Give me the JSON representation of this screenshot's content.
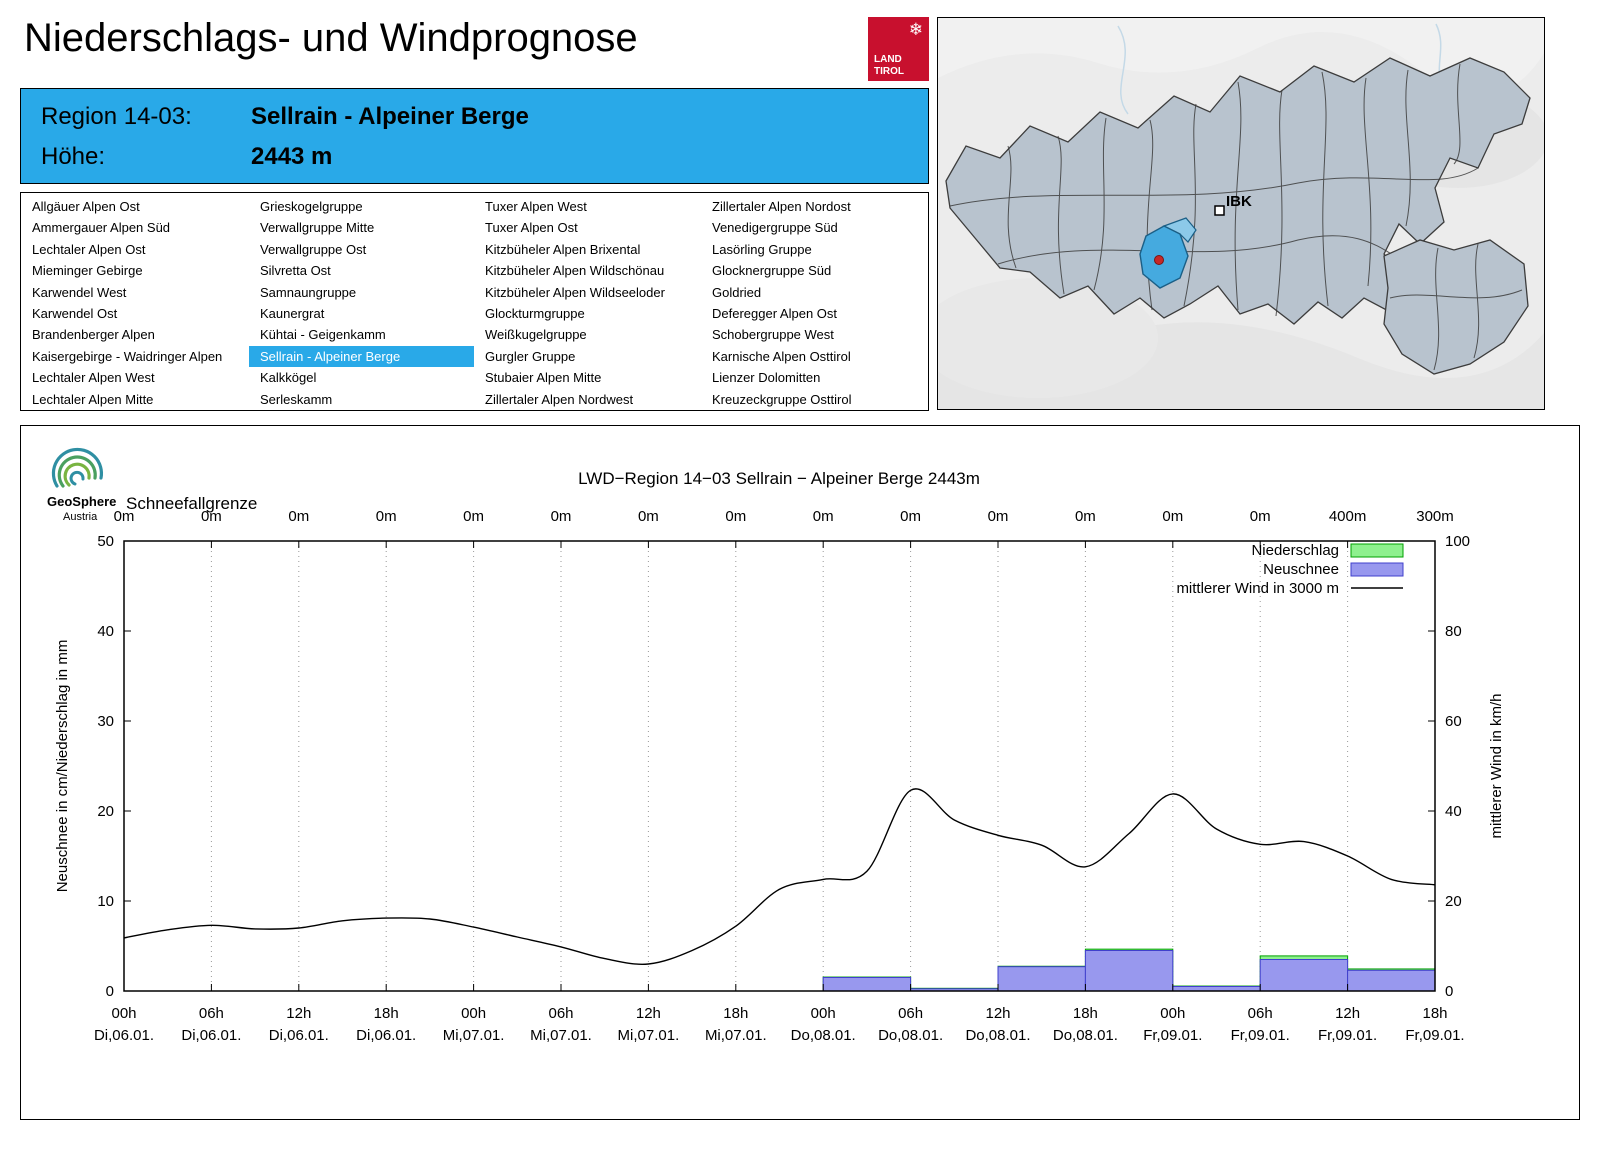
{
  "header": {
    "title": "Niederschlags- und Windprognose",
    "logo": {
      "line1": "LAND",
      "line2": "TIROL",
      "color": "#c8102e"
    }
  },
  "region_info": {
    "region_label": "Region 14-03:",
    "region_value": "Sellrain - Alpeiner Berge",
    "hoehe_label": "Höhe:",
    "hoehe_value": "2443 m",
    "accent_color": "#29a9e8"
  },
  "region_list": {
    "selected": "Sellrain - Alpeiner Berge",
    "columns": [
      [
        "Allgäuer Alpen Ost",
        "Ammergauer Alpen Süd",
        "Lechtaler Alpen Ost",
        "Mieminger Gebirge",
        "Karwendel West",
        "Karwendel Ost",
        "Brandenberger Alpen",
        "Kaisergebirge - Waidringer Alpen",
        "Lechtaler Alpen West",
        "Lechtaler Alpen Mitte"
      ],
      [
        "Grieskogelgruppe",
        "Verwallgruppe Mitte",
        "Verwallgruppe Ost",
        "Silvretta Ost",
        "Samnaungruppe",
        "Kaunergrat",
        "Kühtai - Geigenkamm",
        "Sellrain - Alpeiner Berge",
        "Kalkkögel",
        "Serleskamm"
      ],
      [
        "Tuxer Alpen West",
        "Tuxer Alpen Ost",
        "Kitzbüheler Alpen Brixental",
        "Kitzbüheler Alpen Wildschönau",
        "Kitzbüheler Alpen Wildseeloder",
        "Glockturmgruppe",
        "Weißkugelgruppe",
        "Gurgler Gruppe",
        "Stubaier Alpen Mitte",
        "Zillertaler Alpen Nordwest"
      ],
      [
        "Zillertaler Alpen Nordost",
        "Venedigergruppe Süd",
        "Lasörling Gruppe",
        "Glocknergruppe Süd",
        "Goldried",
        "Deferegger Alpen Ost",
        "Schobergruppe West",
        "Karnische Alpen Osttirol",
        "Lienzer Dolomitten",
        "Kreuzeckgruppe Osttirol"
      ]
    ]
  },
  "map": {
    "ibk_label": "IBK",
    "highlight_color": "#45aadf"
  },
  "geosphere": {
    "name": "GeoSphere",
    "sub": "Austria"
  },
  "chart_data": {
    "type": "bar",
    "title": "LWD−Region 14−03 Sellrain − Alpeiner Berge 2443m",
    "snowline_label": "Schneefallgrenze",
    "snowline": [
      "0m",
      "0m",
      "0m",
      "0m",
      "0m",
      "0m",
      "0m",
      "0m",
      "0m",
      "0m",
      "0m",
      "0m",
      "0m",
      "0m",
      "400m",
      "300m"
    ],
    "legend": [
      "Niederschlag",
      "Neuschnee",
      "mittlerer Wind in 3000 m"
    ],
    "x_ticks": {
      "time": [
        "00h",
        "06h",
        "12h",
        "18h",
        "00h",
        "06h",
        "12h",
        "18h",
        "00h",
        "06h",
        "12h",
        "18h",
        "00h",
        "06h",
        "12h",
        "18h"
      ],
      "date": [
        "Di,06.01.",
        "Di,06.01.",
        "Di,06.01.",
        "Di,06.01.",
        "Mi,07.01.",
        "Mi,07.01.",
        "Mi,07.01.",
        "Mi,07.01.",
        "Do,08.01.",
        "Do,08.01.",
        "Do,08.01.",
        "Do,08.01.",
        "Fr,09.01.",
        "Fr,09.01.",
        "Fr,09.01.",
        "Fr,09.01."
      ]
    },
    "y_left": {
      "label": "Neuschnee in cm/Niederschlag in mm",
      "min": 0,
      "max": 50,
      "ticks": [
        0,
        10,
        20,
        30,
        40,
        50
      ]
    },
    "y_right": {
      "label": "mittlerer Wind in km/h",
      "min": 0,
      "max": 100,
      "ticks": [
        0,
        20,
        40,
        60,
        80,
        100
      ]
    },
    "bars": {
      "note": "one value per 6h interval between consecutive x ticks; units of left axis",
      "niederschlag": [
        0,
        0,
        0,
        0,
        0,
        0,
        0,
        0,
        1.55,
        0.3,
        2.75,
        4.65,
        0.55,
        3.9,
        2.45
      ],
      "neuschnee": [
        0,
        0,
        0,
        0,
        0,
        0,
        0,
        0,
        1.5,
        0.25,
        2.7,
        4.5,
        0.5,
        3.5,
        2.3
      ]
    },
    "wind": {
      "step_hours": 3,
      "values_kmh": [
        11.8,
        13.6,
        14.6,
        13.8,
        14.0,
        15.6,
        16.2,
        16.0,
        14.2,
        12.0,
        9.8,
        7.2,
        6.0,
        9.0,
        14.4,
        22.6,
        24.8,
        26.6,
        44.6,
        38.0,
        34.6,
        32.4,
        27.6,
        35.0,
        43.8,
        36.0,
        32.6,
        33.2,
        30.0,
        24.8,
        23.6
      ]
    },
    "colors": {
      "niederschlag_fill": "#8ef08e",
      "niederschlag_stroke": "#00a000",
      "neuschnee_fill": "#9898ee",
      "neuschnee_stroke": "#4040cc",
      "wind_line": "#000000",
      "grid": "#9a9a9a"
    },
    "grid": "vertical-dotted",
    "legend_position": "top-right"
  }
}
